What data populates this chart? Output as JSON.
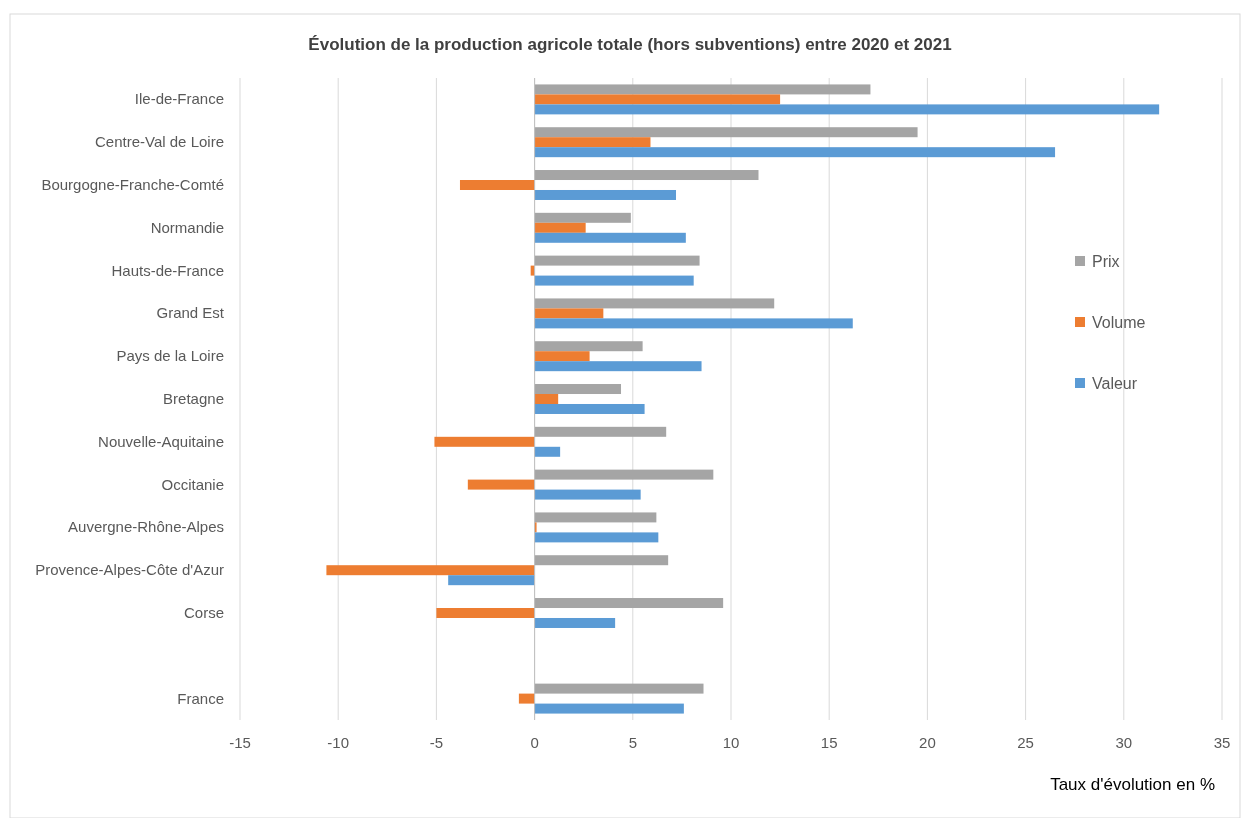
{
  "chart_data": {
    "type": "bar",
    "orientation": "horizontal",
    "title": "Évolution de la production agricole totale (hors subventions) entre 2020 et 2021",
    "xlabel": "Taux d'évolution en %",
    "categories": [
      "Ile-de-France",
      "Centre-Val de Loire",
      "Bourgogne-Franche-Comté",
      "Normandie",
      "Hauts-de-France",
      "Grand Est",
      "Pays de la Loire",
      "Bretagne",
      "Nouvelle-Aquitaine",
      "Occitanie",
      "Auvergne-Rhône-Alpes",
      "Provence-Alpes-Côte d'Azur",
      "Corse",
      null,
      "France"
    ],
    "series": [
      {
        "name": "Prix",
        "color": "#a5a5a5",
        "values": [
          17.1,
          19.5,
          11.4,
          4.9,
          8.4,
          12.2,
          5.5,
          4.4,
          6.7,
          9.1,
          6.2,
          6.8,
          9.6,
          null,
          8.6
        ]
      },
      {
        "name": "Volume",
        "color": "#ed7d31",
        "values": [
          12.5,
          5.9,
          -3.8,
          2.6,
          -0.2,
          3.5,
          2.8,
          1.2,
          -5.1,
          -3.4,
          0.1,
          -10.6,
          -5.0,
          null,
          -0.8
        ]
      },
      {
        "name": "Valeur",
        "color": "#5b9bd5",
        "values": [
          31.8,
          26.5,
          7.2,
          7.7,
          8.1,
          16.2,
          8.5,
          5.6,
          1.3,
          5.4,
          6.3,
          -4.4,
          4.1,
          null,
          7.6
        ]
      }
    ],
    "xlim": [
      -15,
      35
    ],
    "xticks": [
      -15,
      -10,
      -5,
      0,
      5,
      10,
      15,
      20,
      25,
      30,
      35
    ],
    "grid": "x",
    "legend": "right"
  }
}
